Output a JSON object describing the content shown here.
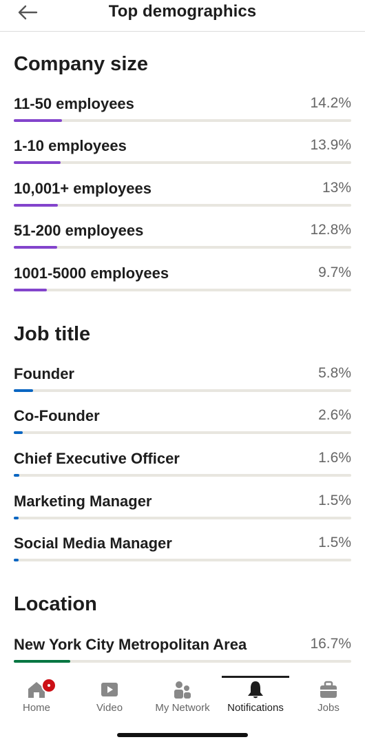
{
  "header": {
    "title": "Top demographics"
  },
  "company": {
    "title": "Company size",
    "rows": [
      {
        "label": "11-50 employees",
        "value": "14.2%",
        "pct": 14.2
      },
      {
        "label": "1-10 employees",
        "value": "13.9%",
        "pct": 13.9
      },
      {
        "label": "10,001+ employees",
        "value": "13%",
        "pct": 13
      },
      {
        "label": "51-200 employees",
        "value": "12.8%",
        "pct": 12.8
      },
      {
        "label": "1001-5000 employees",
        "value": "9.7%",
        "pct": 9.7
      }
    ]
  },
  "job": {
    "title": "Job title",
    "rows": [
      {
        "label": "Founder",
        "value": "5.8%",
        "pct": 5.8
      },
      {
        "label": "Co-Founder",
        "value": "2.6%",
        "pct": 2.6
      },
      {
        "label": "Chief Executive Officer",
        "value": "1.6%",
        "pct": 1.6
      },
      {
        "label": "Marketing Manager",
        "value": "1.5%",
        "pct": 1.5
      },
      {
        "label": "Social Media Manager",
        "value": "1.5%",
        "pct": 1.5
      }
    ]
  },
  "location": {
    "title": "Location",
    "rows": [
      {
        "label": "New York City Metropolitan Area",
        "value": "16.7%",
        "pct": 16.7
      }
    ]
  },
  "colors": {
    "company_bar": "#8344cc",
    "job_bar": "#0a66c2",
    "location_bar": "#057642",
    "track": "#e8e6df",
    "badge": "#cc1016"
  },
  "tabs": [
    {
      "label": "Home",
      "icon": "home-icon"
    },
    {
      "label": "Video",
      "icon": "video-icon"
    },
    {
      "label": "My Network",
      "icon": "network-icon"
    },
    {
      "label": "Notifications",
      "icon": "bell-icon",
      "active": true
    },
    {
      "label": "Jobs",
      "icon": "briefcase-icon"
    }
  ]
}
